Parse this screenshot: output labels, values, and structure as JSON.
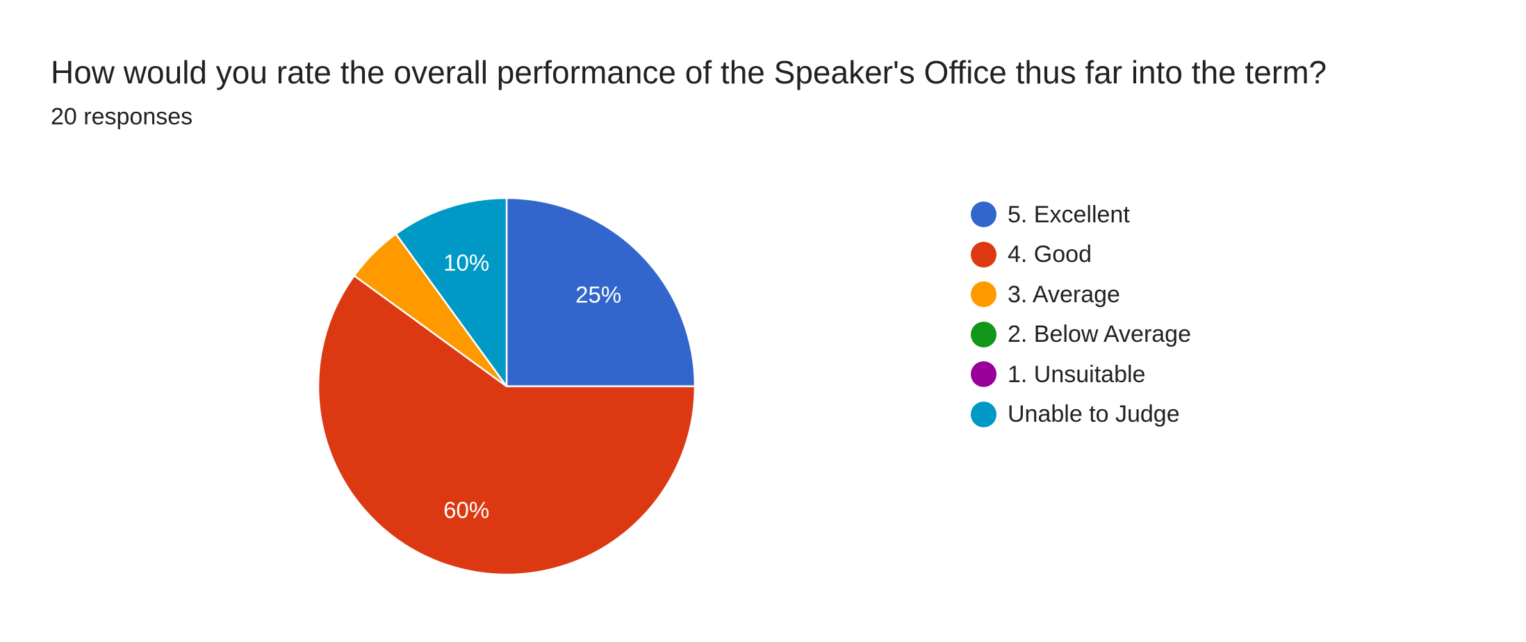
{
  "question": {
    "title": "How would you rate the overall performance of the Speaker's Office thus far into the term?",
    "responses": "20 responses"
  },
  "chart_data": {
    "type": "pie",
    "total_responses": 20,
    "start_angle_deg": 90,
    "direction": "clockwise",
    "label_min_percent": 10,
    "slices": [
      {
        "label": "5. Excellent",
        "value": 25,
        "color": "#3366cc",
        "data_label": "25%"
      },
      {
        "label": "4. Good",
        "value": 60,
        "color": "#dc3912",
        "data_label": "60%"
      },
      {
        "label": "3. Average",
        "value": 5,
        "color": "#ff9900",
        "data_label": ""
      },
      {
        "label": "2. Below Average",
        "value": 0,
        "color": "#109618",
        "data_label": ""
      },
      {
        "label": "1. Unsuitable",
        "value": 0,
        "color": "#990099",
        "data_label": ""
      },
      {
        "label": "Unable to Judge",
        "value": 10,
        "color": "#0099c6",
        "data_label": "10%"
      }
    ],
    "legend_position": "right"
  }
}
